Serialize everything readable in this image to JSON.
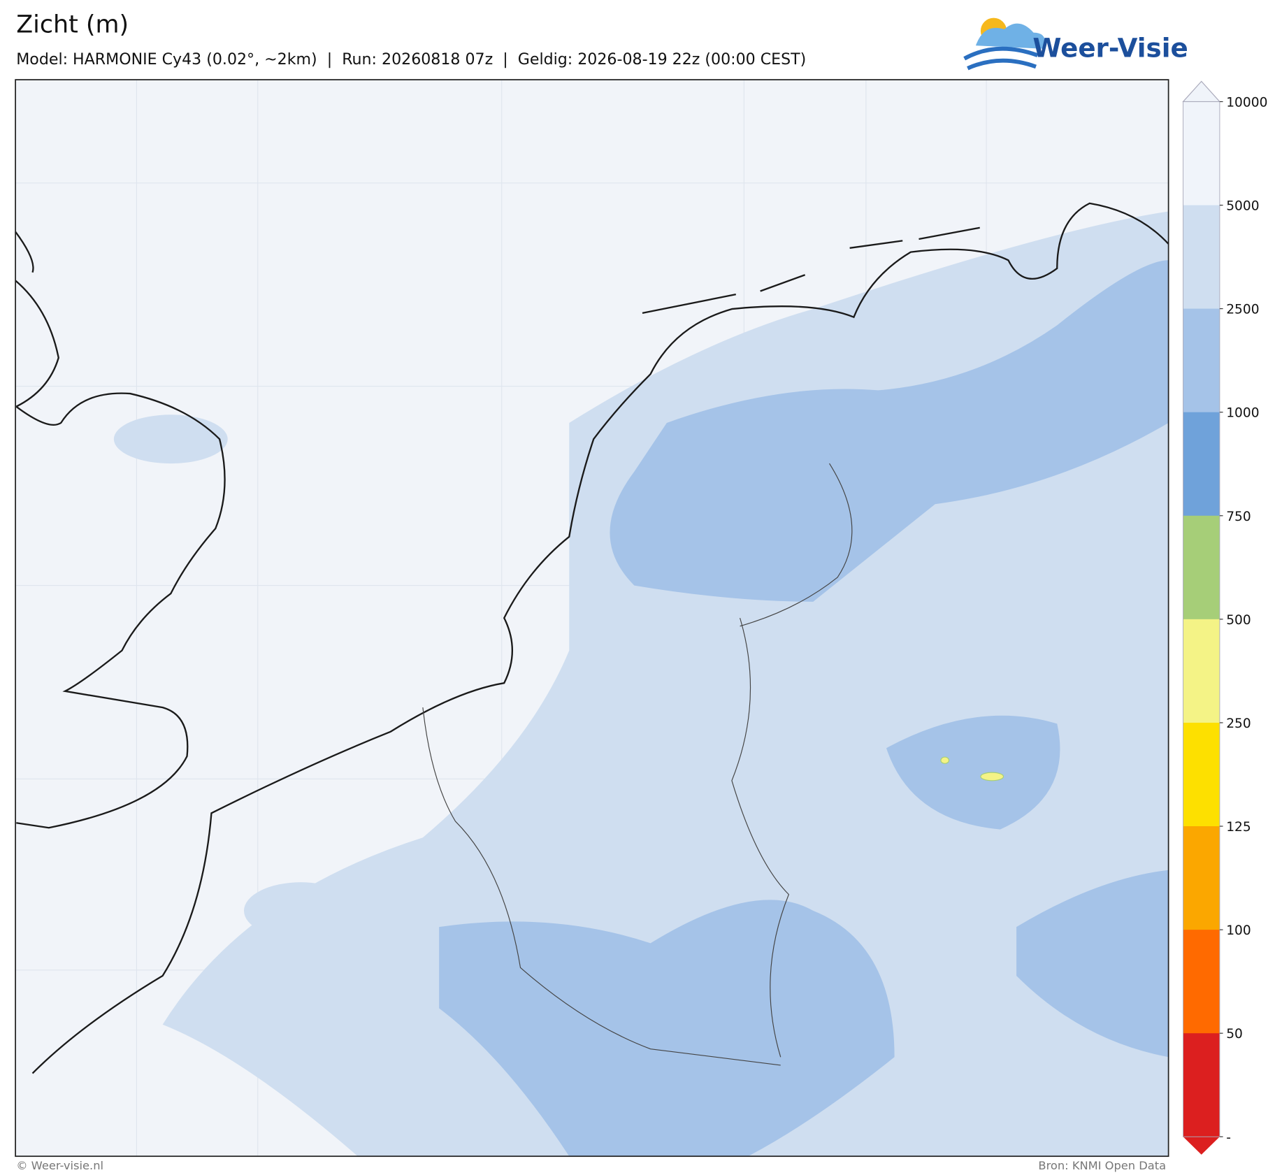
{
  "header": {
    "title": "Zicht (m)",
    "subtitle": "Model: HARMONIE Cy43 (0.02°, ~2km)  |  Run: 20260818 07z  |  Geldig: 2026-08-19 22z (00:00 CEST)",
    "logo": "Weer-Visie"
  },
  "colorbar": {
    "ticks": [
      10000,
      5000,
      2500,
      1000,
      750,
      500,
      250,
      125,
      100,
      50
    ],
    "bottom_label": "-",
    "colors": [
      "#f0f4fa",
      "#cfdef0",
      "#a5c3e8",
      "#6fa2da",
      "#a6ce78",
      "#f4f386",
      "#fde000",
      "#fba700",
      "#ff6a00",
      "#dc1f1f"
    ]
  },
  "footer": {
    "left": "© Weer-visie.nl",
    "right": "Bron: KNMI Open Data"
  }
}
